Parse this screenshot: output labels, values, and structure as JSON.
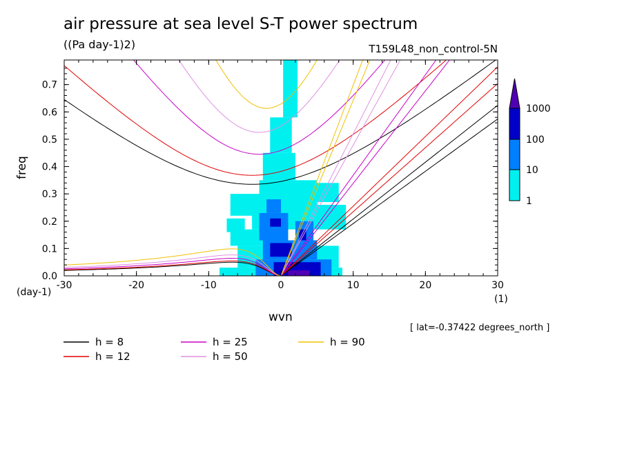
{
  "title": "air pressure at sea level S-T power spectrum",
  "units": "((Pa day-1)2)",
  "run_label": "T159L48_non_control-5N",
  "lat_note": "[ lat=-0.37422 degrees_north ]",
  "colors": {
    "h8": "#000000",
    "h12": "#e00000",
    "h25": "#c800c8",
    "h50": "#e090e0",
    "h90": "#f0c000",
    "level1": "#00f0f0",
    "level10": "#0080ff",
    "level100": "#0000c8",
    "level1000": "#5000b4"
  },
  "chart_data": {
    "type": "heatmap",
    "xlabel": "wvn",
    "ylabel": "freq",
    "x_unit": "(1)",
    "y_unit": "(day-1)",
    "xlim": [
      -30,
      30
    ],
    "ylim": [
      0.0,
      0.79
    ],
    "xticks": [
      "-30",
      "-20",
      "-10",
      "0",
      "10",
      "20",
      "30"
    ],
    "yticks": [
      "0.0",
      "0.1",
      "0.2",
      "0.3",
      "0.4",
      "0.5",
      "0.6",
      "0.7"
    ],
    "colorbar": {
      "levels": [
        "1",
        "10",
        "100",
        "1000"
      ],
      "colors": [
        "#00f0f0",
        "#0080ff",
        "#0000c8",
        "#5000b4"
      ]
    },
    "legend": [
      {
        "label": "h =  8",
        "color": "#000000"
      },
      {
        "label": "h = 12",
        "color": "#e00000"
      },
      {
        "label": "h = 25",
        "color": "#c800c8"
      },
      {
        "label": "h = 50",
        "color": "#e090e0"
      },
      {
        "label": "h = 90",
        "color": "#f0c000"
      }
    ],
    "dispersion_curves": [
      {
        "h": 8,
        "color": "#000000",
        "eig_min": 0.335,
        "eig_min_x": -4,
        "eig_at_left": 0.635,
        "eig_at_right": 0.565,
        "rossby_peak": 0.052,
        "kelvin_slope": 0.0208,
        "ig_at_right": 0.695
      },
      {
        "h": 12,
        "color": "#e00000",
        "eig_min": 0.368,
        "eig_min_x": -4,
        "eig_at_left": 0.765,
        "eig_at_right": 0.695,
        "rossby_peak": 0.057,
        "kelvin_slope": 0.0255,
        "ig_at_right": 0.79
      },
      {
        "h": 25,
        "color": "#c800c8",
        "eig_min": 0.445,
        "eig_min_x": -3,
        "rossby_peak": 0.067,
        "kelvin_slope": 0.0368
      },
      {
        "h": 50,
        "color": "#e090e0",
        "eig_min": 0.525,
        "eig_min_x": -3,
        "rossby_peak": 0.08,
        "kelvin_slope": 0.052
      },
      {
        "h": 90,
        "color": "#f0c000",
        "eig_min": 0.613,
        "eig_min_x": -2,
        "rossby_peak": 0.103,
        "kelvin_slope": 0.0698
      }
    ],
    "power_patches": [
      {
        "x0": -8.5,
        "x1": 8.5,
        "y0": 0.0,
        "y1": 0.03,
        "level": 1
      },
      {
        "x0": -6,
        "x1": 8,
        "y0": 0.03,
        "y1": 0.11,
        "level": 1
      },
      {
        "x0": -7,
        "x1": -1,
        "y0": 0.11,
        "y1": 0.17,
        "level": 1
      },
      {
        "x0": -4,
        "x1": 9,
        "y0": 0.17,
        "y1": 0.26,
        "level": 1
      },
      {
        "x0": -3,
        "x1": 5,
        "y0": 0.26,
        "y1": 0.35,
        "level": 1
      },
      {
        "x0": -7,
        "x1": -2,
        "y0": 0.22,
        "y1": 0.3,
        "level": 1
      },
      {
        "x0": -2.5,
        "x1": 2,
        "y0": 0.35,
        "y1": 0.45,
        "level": 1
      },
      {
        "x0": -1.5,
        "x1": 1.5,
        "y0": 0.45,
        "y1": 0.58,
        "level": 1
      },
      {
        "x0": 0.3,
        "x1": 2.3,
        "y0": 0.58,
        "y1": 0.79,
        "level": 1
      },
      {
        "x0": 4,
        "x1": 8,
        "y0": 0.27,
        "y1": 0.34,
        "level": 1
      },
      {
        "x0": -7.5,
        "x1": -5,
        "y0": 0.16,
        "y1": 0.21,
        "level": 1
      },
      {
        "x0": -3.5,
        "x1": 7,
        "y0": 0.0,
        "y1": 0.06,
        "level": 10
      },
      {
        "x0": -2.5,
        "x1": 5,
        "y0": 0.06,
        "y1": 0.13,
        "level": 10
      },
      {
        "x0": -3,
        "x1": 1,
        "y0": 0.13,
        "y1": 0.23,
        "level": 10
      },
      {
        "x0": 2,
        "x1": 4.5,
        "y0": 0.13,
        "y1": 0.2,
        "level": 10
      },
      {
        "x0": -2,
        "x1": 0,
        "y0": 0.23,
        "y1": 0.28,
        "level": 10
      },
      {
        "x0": -1,
        "x1": 5.5,
        "y0": 0.0,
        "y1": 0.05,
        "level": 100
      },
      {
        "x0": -1.5,
        "x1": 1.5,
        "y0": 0.07,
        "y1": 0.12,
        "level": 100
      },
      {
        "x0": -1.5,
        "x1": 0,
        "y0": 0.18,
        "y1": 0.21,
        "level": 100
      },
      {
        "x0": 2.5,
        "x1": 3.5,
        "y0": 0.13,
        "y1": 0.17,
        "level": 100
      },
      {
        "x0": 1,
        "x1": 4,
        "y0": 0.0,
        "y1": 0.02,
        "level": 1000
      }
    ]
  }
}
